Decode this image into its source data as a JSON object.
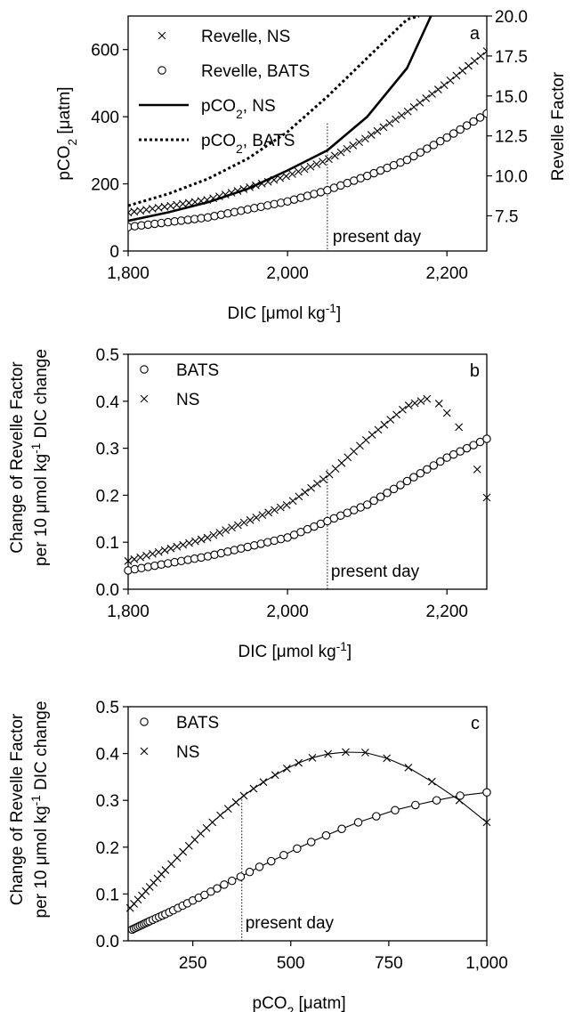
{
  "chart_data": [
    {
      "panel_label": "a",
      "type": "line+scatter",
      "xlabel_main": "DIC [",
      "xlabel_mu": "μ",
      "xlabel_unit": "mol kg",
      "xlabel_sup": "-1",
      "xlabel_close": "]",
      "ylabel_left_main": "pCO",
      "ylabel_left_sub": "2",
      "ylabel_left_unit": " [",
      "ylabel_left_mu": "μ",
      "ylabel_left_tail": "atm]",
      "ylabel_right": "Revelle Factor",
      "xlim": [
        1800,
        2250
      ],
      "ylim_left": [
        0,
        700
      ],
      "ylim_right": [
        5.3,
        20
      ],
      "xticks": [
        1800,
        2000,
        2200
      ],
      "xtick_labels": [
        "1,800",
        "2,000",
        "2,200"
      ],
      "yticks_left": [
        0,
        200,
        400,
        600
      ],
      "yticks_right": [
        7.5,
        10.0,
        12.5,
        15.0,
        17.5,
        20.0
      ],
      "ytick_labels_right": [
        "7.5",
        "10.0",
        "12.5",
        "15.0",
        "17.5",
        "20.0"
      ],
      "present_day_x": 2050,
      "annotation": "present day",
      "legend": [
        {
          "marker": "x",
          "label_main": "Revelle, NS",
          "label_sub": "",
          "label_tail": ""
        },
        {
          "marker": "o",
          "label_main": "Revelle, BATS",
          "label_sub": "",
          "label_tail": ""
        },
        {
          "marker": "solid",
          "label_main": "pCO",
          "label_sub": "2",
          "label_tail": ", NS"
        },
        {
          "marker": "dotted",
          "label_main": "pCO",
          "label_sub": "2",
          "label_tail": ", BATS"
        }
      ],
      "series": [
        {
          "name": "pCO2, NS",
          "axis": "left",
          "style": "solid",
          "x": [
            1800,
            1850,
            1900,
            1950,
            2000,
            2050,
            2100,
            2150,
            2180
          ],
          "y": [
            90,
            115,
            145,
            185,
            240,
            300,
            400,
            545,
            700
          ]
        },
        {
          "name": "pCO2, BATS",
          "axis": "left",
          "style": "dotted",
          "x": [
            1800,
            1850,
            1900,
            1950,
            2000,
            2050,
            2100,
            2150,
            2165
          ],
          "y": [
            135,
            170,
            215,
            275,
            355,
            460,
            575,
            690,
            700
          ]
        },
        {
          "name": "Revelle, NS",
          "axis": "right",
          "style": "x",
          "x0": 1800,
          "x1": 2250,
          "n": 60,
          "curve": {
            "x": [
              1800,
              1900,
              2000,
              2050,
              2100,
              2150,
              2200,
              2250
            ],
            "y": [
              7.7,
              8.5,
              10.0,
              11.0,
              12.4,
              14.0,
              15.8,
              17.8
            ]
          }
        },
        {
          "name": "Revelle, BATS",
          "axis": "right",
          "style": "o",
          "x0": 1800,
          "x1": 2250,
          "n": 55,
          "curve": {
            "x": [
              1800,
              1900,
              2000,
              2050,
              2100,
              2150,
              2200,
              2250
            ],
            "y": [
              6.8,
              7.4,
              8.4,
              9.1,
              10.0,
              11.0,
              12.4,
              13.9
            ]
          }
        }
      ]
    },
    {
      "panel_label": "b",
      "type": "scatter",
      "xlabel_main": "DIC [",
      "xlabel_mu": "μ",
      "xlabel_unit": "mol kg",
      "xlabel_sup": "-1",
      "xlabel_close": "]",
      "ylabel_line1": "Change of Revelle Factor",
      "ylabel_line2_a": "per 10 ",
      "ylabel_line2_mu": "μ",
      "ylabel_line2_b": "mol kg",
      "ylabel_line2_sup": "-1",
      "ylabel_line2_c": " DIC change",
      "xlim": [
        1800,
        2250
      ],
      "ylim": [
        0,
        0.5
      ],
      "xticks": [
        1800,
        2000,
        2200
      ],
      "xtick_labels": [
        "1,800",
        "2,000",
        "2,200"
      ],
      "yticks": [
        0,
        0.1,
        0.2,
        0.3,
        0.4,
        0.5
      ],
      "ytick_labels": [
        "0.0",
        "0.1",
        "0.2",
        "0.3",
        "0.4",
        "0.5"
      ],
      "present_day_x": 2050,
      "annotation": "present day",
      "legend": [
        {
          "marker": "o",
          "label": "BATS"
        },
        {
          "marker": "x",
          "label": "NS"
        }
      ],
      "series": [
        {
          "name": "BATS",
          "style": "o",
          "x0": 1800,
          "x1": 2250,
          "n": 55,
          "curve": {
            "x": [
              1800,
              1900,
              2000,
              2050,
              2100,
              2150,
              2200,
              2250
            ],
            "y": [
              0.04,
              0.07,
              0.11,
              0.145,
              0.18,
              0.23,
              0.28,
              0.32
            ]
          }
        },
        {
          "name": "NS",
          "style": "x",
          "x0": 1800,
          "x1": 2175,
          "n": 50,
          "curve": {
            "x": [
              1800,
              1900,
              2000,
              2050,
              2100,
              2150,
              2175
            ],
            "y": [
              0.06,
              0.11,
              0.18,
              0.24,
              0.32,
              0.39,
              0.405
            ]
          }
        },
        {
          "name": "NS",
          "style": "x-list",
          "x": [
            2190,
            2200,
            2215,
            2238,
            2250
          ],
          "y": [
            0.395,
            0.375,
            0.345,
            0.255,
            0.195
          ]
        }
      ]
    },
    {
      "panel_label": "c",
      "type": "line+scatter",
      "xlabel_main": "pCO",
      "xlabel_sub": "2",
      "xlabel_unit": " [",
      "xlabel_mu": "μ",
      "xlabel_tail": "atm]",
      "ylabel_line1": "Change of Revelle Factor",
      "ylabel_line2_a": "per 10 ",
      "ylabel_line2_mu": "μ",
      "ylabel_line2_b": "mol kg",
      "ylabel_line2_sup": "-1",
      "ylabel_line2_c": " DIC change",
      "xlim": [
        85,
        1000
      ],
      "ylim": [
        0,
        0.5
      ],
      "xticks": [
        250,
        500,
        750,
        1000
      ],
      "xtick_labels": [
        "250",
        "500",
        "750",
        "1,000"
      ],
      "yticks": [
        0,
        0.1,
        0.2,
        0.3,
        0.4,
        0.5
      ],
      "ytick_labels": [
        "0.0",
        "0.1",
        "0.2",
        "0.3",
        "0.4",
        "0.5"
      ],
      "present_day_x": 375,
      "annotation": "present day",
      "legend": [
        {
          "marker": "o",
          "label": "BATS"
        },
        {
          "marker": "x",
          "label": "NS"
        }
      ],
      "series": [
        {
          "name": "NS",
          "style": "x-line",
          "x": [
            90,
            100,
            110,
            120,
            130,
            140,
            150,
            160,
            170,
            180,
            195,
            210,
            225,
            240,
            255,
            270,
            285,
            300,
            320,
            340,
            360,
            380,
            405,
            430,
            460,
            490,
            520,
            555,
            595,
            640,
            690,
            745,
            800,
            860,
            930,
            1000
          ],
          "y": [
            0.07,
            0.079,
            0.088,
            0.097,
            0.106,
            0.115,
            0.124,
            0.133,
            0.142,
            0.151,
            0.164,
            0.177,
            0.19,
            0.203,
            0.216,
            0.229,
            0.241,
            0.253,
            0.268,
            0.282,
            0.296,
            0.31,
            0.325,
            0.339,
            0.354,
            0.368,
            0.38,
            0.391,
            0.399,
            0.403,
            0.402,
            0.39,
            0.37,
            0.34,
            0.3,
            0.253
          ]
        },
        {
          "name": "BATS",
          "style": "o-line",
          "x": [
            95,
            100,
            105,
            110,
            115,
            120,
            125,
            130,
            135,
            140,
            148,
            156,
            164,
            172,
            180,
            190,
            200,
            212,
            224,
            236,
            250,
            265,
            280,
            296,
            312,
            330,
            350,
            372,
            395,
            420,
            450,
            482,
            516,
            552,
            590,
            630,
            672,
            718,
            766,
            818,
            872,
            932,
            1000
          ],
          "y": [
            0.024,
            0.026,
            0.028,
            0.03,
            0.032,
            0.034,
            0.036,
            0.038,
            0.04,
            0.042,
            0.045,
            0.048,
            0.051,
            0.054,
            0.057,
            0.061,
            0.065,
            0.07,
            0.075,
            0.08,
            0.086,
            0.092,
            0.098,
            0.105,
            0.112,
            0.12,
            0.128,
            0.137,
            0.147,
            0.158,
            0.17,
            0.183,
            0.197,
            0.211,
            0.225,
            0.239,
            0.253,
            0.266,
            0.279,
            0.29,
            0.3,
            0.31,
            0.317
          ]
        }
      ]
    }
  ]
}
